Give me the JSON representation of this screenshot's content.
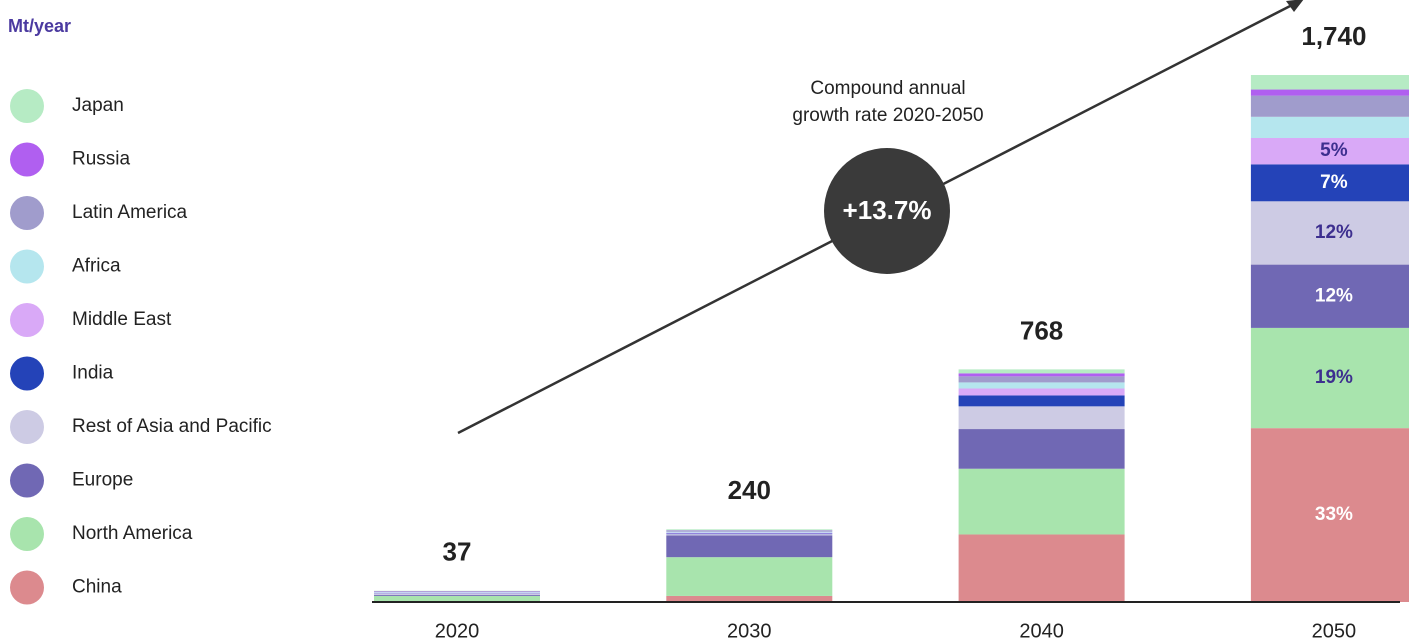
{
  "chart_data": {
    "type": "stacked-bar",
    "unit_label": "Mt/year",
    "categories": [
      "2020",
      "2030",
      "2040",
      "2050"
    ],
    "totals": [
      37,
      240,
      768,
      1740
    ],
    "total_labels": [
      "37",
      "240",
      "768",
      "1,740"
    ],
    "series": [
      {
        "name": "China",
        "color": "#dc8a8e",
        "label_color": "#ffffff",
        "values": [
          2,
          20,
          223,
          574
        ],
        "value_labels": [
          null,
          null,
          null,
          "33%"
        ]
      },
      {
        "name": "North America",
        "color": "#a8e4ad",
        "label_color": "#3d2f8f",
        "values": [
          18,
          128,
          217,
          331
        ],
        "value_labels": [
          null,
          null,
          null,
          "19%"
        ]
      },
      {
        "name": "Europe",
        "color": "#7068b4",
        "label_color": "#ffffff",
        "values": [
          3,
          72,
          131,
          209
        ],
        "value_labels": [
          null,
          null,
          null,
          "12%"
        ]
      },
      {
        "name": "Rest of Asia and Pacific",
        "color": "#cdcbe4",
        "label_color": "#3d2f8f",
        "values": [
          5,
          4,
          75,
          209
        ],
        "value_labels": [
          null,
          null,
          null,
          "12%"
        ]
      },
      {
        "name": "India",
        "color": "#2443b8",
        "label_color": "#ffffff",
        "values": [
          1,
          2,
          36,
          122
        ],
        "value_labels": [
          null,
          null,
          null,
          "7%"
        ]
      },
      {
        "name": "Middle East",
        "color": "#d9a9f7",
        "label_color": "#3d2f8f",
        "values": [
          2,
          3,
          23,
          87
        ],
        "value_labels": [
          null,
          null,
          null,
          "5%"
        ]
      },
      {
        "name": "Africa",
        "color": "#b5e6ee",
        "label_color": "#3d2f8f",
        "values": [
          2,
          3,
          20,
          70
        ],
        "value_labels": [
          null,
          null,
          null,
          null
        ]
      },
      {
        "name": "Latin America",
        "color": "#a09ccc",
        "label_color": "#3d2f8f",
        "values": [
          2,
          4,
          20,
          70
        ],
        "value_labels": [
          null,
          null,
          null,
          null
        ]
      },
      {
        "name": "Russia",
        "color": "#b05ff0",
        "label_color": "#3d2f8f",
        "values": [
          1,
          1,
          10,
          20
        ],
        "value_labels": [
          null,
          null,
          null,
          null
        ]
      },
      {
        "name": "Japan",
        "color": "#b6ebc4",
        "label_color": "#3d2f8f",
        "values": [
          1,
          3,
          13,
          48
        ],
        "value_labels": [
          null,
          null,
          null,
          null
        ]
      }
    ],
    "growth_label": [
      "Compound annual",
      "growth rate 2020-2050"
    ],
    "growth_value": "+13.7%"
  }
}
